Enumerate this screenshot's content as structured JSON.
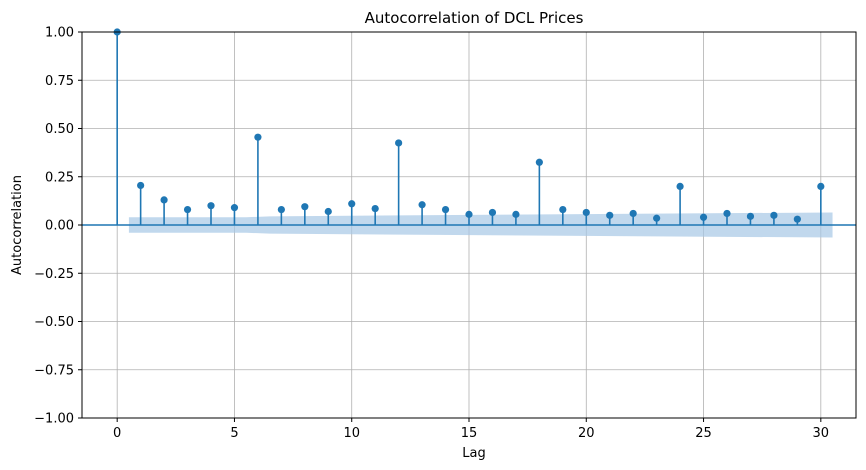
{
  "chart_data": {
    "type": "stem",
    "title": "Autocorrelation of DCL Prices",
    "xlabel": "Lag",
    "ylabel": "Autocorrelation",
    "xlim": [
      -1.5,
      31.5
    ],
    "ylim": [
      -1.0,
      1.0
    ],
    "xticks": [
      0,
      5,
      10,
      15,
      20,
      25,
      30
    ],
    "xtick_labels": [
      "0",
      "5",
      "10",
      "15",
      "20",
      "25",
      "30"
    ],
    "yticks": [
      -1.0,
      -0.75,
      -0.5,
      -0.25,
      0.0,
      0.25,
      0.5,
      0.75,
      1.0
    ],
    "ytick_labels": [
      "−1.00",
      "−0.75",
      "−0.50",
      "−0.25",
      "0.00",
      "0.25",
      "0.50",
      "0.75",
      "1.00"
    ],
    "grid": true,
    "lags": [
      0,
      1,
      2,
      3,
      4,
      5,
      6,
      7,
      8,
      9,
      10,
      11,
      12,
      13,
      14,
      15,
      16,
      17,
      18,
      19,
      20,
      21,
      22,
      23,
      24,
      25,
      26,
      27,
      28,
      29,
      30
    ],
    "values": [
      1.0,
      0.205,
      0.13,
      0.08,
      0.1,
      0.09,
      0.455,
      0.08,
      0.095,
      0.07,
      0.11,
      0.085,
      0.425,
      0.105,
      0.08,
      0.055,
      0.065,
      0.055,
      0.325,
      0.08,
      0.065,
      0.05,
      0.06,
      0.035,
      0.2,
      0.04,
      0.06,
      0.045,
      0.05,
      0.03,
      0.2
    ],
    "confidence_band": {
      "x": [
        0.5,
        5.5,
        6.5,
        30.5
      ],
      "upper": [
        0.04,
        0.04,
        0.045,
        0.065
      ],
      "lower": [
        -0.04,
        -0.04,
        -0.045,
        -0.065
      ]
    },
    "colors": {
      "marker": "#1f77b4",
      "band": "#a6c8e6",
      "zero_line": "#1f77b4",
      "grid": "#b0b0b0"
    }
  }
}
